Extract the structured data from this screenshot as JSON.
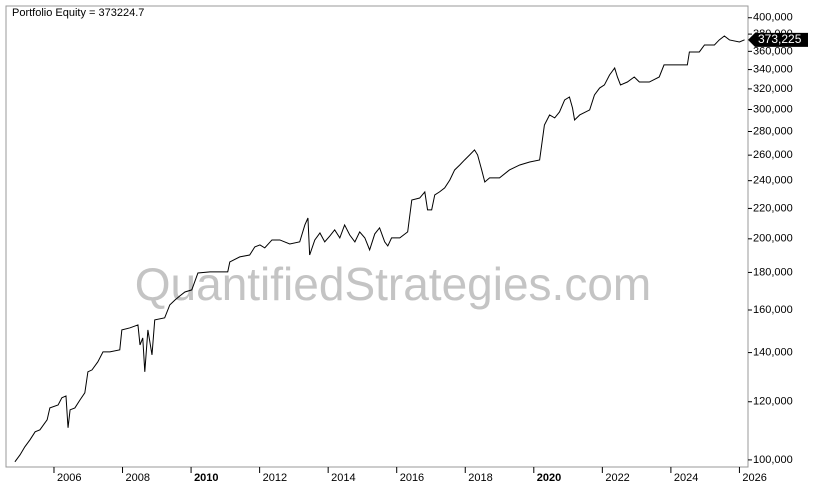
{
  "chart_data": {
    "type": "line",
    "title": "Portfolio Equity = 373224.7",
    "watermark": "QuantifiedStrategies.com",
    "log_scale": true,
    "color": "#000000",
    "x": [
      2004.86,
      2005.01,
      2005.15,
      2005.3,
      2005.45,
      2005.59,
      2005.8,
      2005.88,
      2006.12,
      2006.23,
      2006.35,
      2006.41,
      2006.47,
      2006.61,
      2006.76,
      2006.9,
      2006.99,
      2007.11,
      2007.28,
      2007.43,
      2007.63,
      2007.92,
      2007.98,
      2008.22,
      2008.45,
      2008.51,
      2008.59,
      2008.65,
      2008.74,
      2008.86,
      2008.94,
      2009.23,
      2009.38,
      2009.53,
      2009.67,
      2009.82,
      2010.02,
      2010.2,
      2010.55,
      2011.07,
      2011.13,
      2011.42,
      2011.71,
      2011.86,
      2012.01,
      2012.15,
      2012.36,
      2012.59,
      2012.88,
      2013.17,
      2013.32,
      2013.41,
      2013.46,
      2013.61,
      2013.76,
      2013.9,
      2014.05,
      2014.19,
      2014.34,
      2014.48,
      2014.63,
      2014.78,
      2014.92,
      2015.07,
      2015.21,
      2015.36,
      2015.5,
      2015.65,
      2015.74,
      2015.85,
      2016.09,
      2016.32,
      2016.44,
      2016.67,
      2016.82,
      2016.9,
      2017.02,
      2017.11,
      2017.25,
      2017.4,
      2017.55,
      2017.69,
      2017.84,
      2017.98,
      2018.13,
      2018.27,
      2018.36,
      2018.48,
      2018.57,
      2018.71,
      2019.0,
      2019.29,
      2019.59,
      2019.88,
      2020.17,
      2020.31,
      2020.46,
      2020.61,
      2020.75,
      2020.9,
      2021.04,
      2021.13,
      2021.19,
      2021.34,
      2021.63,
      2021.77,
      2021.92,
      2022.06,
      2022.21,
      2022.36,
      2022.44,
      2022.53,
      2022.73,
      2022.93,
      2023.08,
      2023.37,
      2023.66,
      2023.8,
      2023.96,
      2024.48,
      2024.54,
      2024.83,
      2024.98,
      2025.27,
      2025.41,
      2025.56,
      2025.71,
      2026.0,
      2026.15
    ],
    "values": [
      99400,
      101600,
      104200,
      106500,
      109200,
      109900,
      113400,
      117700,
      118800,
      121500,
      122200,
      110600,
      117000,
      117700,
      120700,
      123400,
      131800,
      132600,
      136000,
      140300,
      140300,
      141200,
      150300,
      151300,
      152700,
      143400,
      146600,
      131800,
      150300,
      139000,
      155100,
      156100,
      162600,
      165100,
      167200,
      169300,
      170400,
      179700,
      180300,
      180300,
      186000,
      189000,
      190100,
      195000,
      196200,
      194400,
      199300,
      199300,
      196800,
      198100,
      208900,
      213500,
      190100,
      199300,
      203700,
      198100,
      201800,
      205700,
      200600,
      208900,
      202400,
      198100,
      204400,
      200600,
      193200,
      203100,
      207000,
      198100,
      195600,
      200600,
      200600,
      204400,
      225900,
      227300,
      231700,
      219000,
      219000,
      229500,
      231700,
      234600,
      240500,
      248200,
      252100,
      256100,
      260200,
      264300,
      260200,
      248200,
      239000,
      242100,
      242100,
      248200,
      252100,
      254500,
      256100,
      285800,
      294900,
      292200,
      297700,
      309100,
      312000,
      301400,
      290300,
      294900,
      299600,
      314000,
      320900,
      324000,
      334300,
      341700,
      332200,
      324000,
      327000,
      332200,
      327000,
      327000,
      332200,
      345000,
      345000,
      345000,
      359300,
      359300,
      367300,
      367300,
      373100,
      377800,
      373100,
      370700,
      373224.7
    ],
    "last_value": 373224.7,
    "last_value_label": "373,225",
    "xlim": [
      2004.6,
      2026.25
    ],
    "xticks": [
      2006,
      2008,
      2010,
      2012,
      2014,
      2016,
      2018,
      2020,
      2022,
      2024,
      2026
    ],
    "ylim": [
      97800,
      415000
    ],
    "yticks": [
      {
        "value": 100000,
        "label": "100,000"
      },
      {
        "value": 120000,
        "label": "120,000"
      },
      {
        "value": 140000,
        "label": "140,000"
      },
      {
        "value": 160000,
        "label": "160,000"
      },
      {
        "value": 180000,
        "label": "180,000"
      },
      {
        "value": 200000,
        "label": "200,000"
      },
      {
        "value": 220000,
        "label": "220,000"
      },
      {
        "value": 240000,
        "label": "240,000"
      },
      {
        "value": 260000,
        "label": "260,000"
      },
      {
        "value": 280000,
        "label": "280,000"
      },
      {
        "value": 300000,
        "label": "300,000"
      },
      {
        "value": 320000,
        "label": "320,000"
      },
      {
        "value": 340000,
        "label": "340,000"
      },
      {
        "value": 360000,
        "label": "360,000"
      },
      {
        "value": 380000,
        "label": "380,000"
      },
      {
        "value": 400000,
        "label": "400,000"
      }
    ]
  }
}
